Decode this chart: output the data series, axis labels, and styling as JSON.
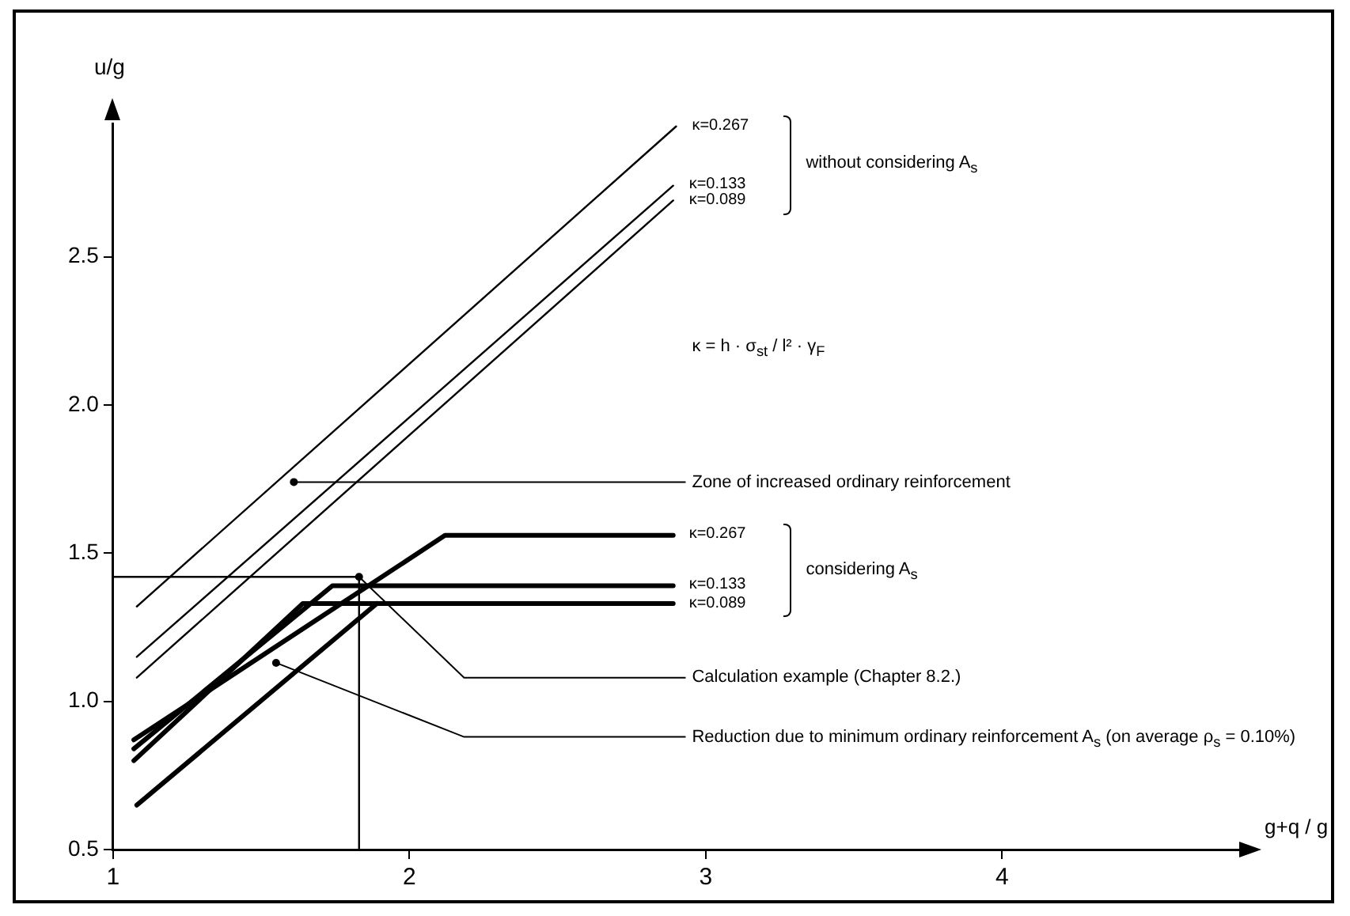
{
  "chart_data": {
    "type": "line",
    "xlabel": "g+q / g",
    "ylabel": "u/g",
    "xlim": [
      1,
      4.8
    ],
    "ylim": [
      0.5,
      2.95
    ],
    "xticks": [
      1,
      2,
      3,
      4
    ],
    "yticks": [
      {
        "value": 0.5,
        "label": "0.5"
      },
      {
        "value": 1,
        "label": "1.0"
      },
      {
        "value": 1.5,
        "label": "1.5"
      },
      {
        "value": 2,
        "label": "2.0"
      },
      {
        "value": 2.5,
        "label": "2.5"
      }
    ],
    "grid": false,
    "legend": "right",
    "marker": "none",
    "line_style": "solid",
    "series": [
      {
        "name": "κ=0.267",
        "color": "#000000",
        "x": [
          1.08,
          2.9
        ],
        "values": [
          1.32,
          2.94
        ]
      },
      {
        "name": "κ=0.133",
        "color": "#000000",
        "x": [
          1.08,
          2.89
        ],
        "values": [
          1.15,
          2.74
        ]
      },
      {
        "name": "κ=0.089",
        "color": "#000000",
        "x": [
          1.08,
          2.89
        ],
        "values": [
          1.08,
          2.69
        ]
      },
      {
        "name": "κ=0.267",
        "color": "#000000",
        "x": [
          1.07,
          2.12,
          2.89
        ],
        "values": [
          0.87,
          1.56,
          1.56
        ]
      },
      {
        "name": "κ=0.133",
        "color": "#000000",
        "x": [
          1.07,
          1.74,
          2.89
        ],
        "values": [
          0.84,
          1.39,
          1.39
        ]
      },
      {
        "name": "κ=0.089",
        "color": "#000000",
        "x": [
          1.07,
          1.64,
          2.89
        ],
        "values": [
          0.8,
          1.33,
          1.33
        ]
      },
      {
        "color": "#000000",
        "x": [
          1.08,
          1.89
        ],
        "values": [
          0.65,
          1.33
        ]
      },
      {
        "color": "#000000",
        "x": [
          1,
          1.83,
          1.83
        ],
        "values": [
          1.42,
          1.42,
          0.5
        ]
      }
    ],
    "annotations": [
      "without considering A$_{s}$",
      "κ = h · σ$_{st}$ / l² · γ$_{F}$",
      "considering A$_{s}$",
      {
        "text": "Zone of increased ordinary reinforcement",
        "x": 1.61,
        "y": 1.74
      },
      {
        "text": "Calculation example (Chapter 8.2.)",
        "x": 1.83,
        "y": 1.42
      },
      {
        "text": "Reduction due to minimum ordinary reinforcement A$_{s}$ (on average ρ$_{s}$ = 0.10%)",
        "x": 1.55,
        "y": 1.13
      }
    ]
  }
}
